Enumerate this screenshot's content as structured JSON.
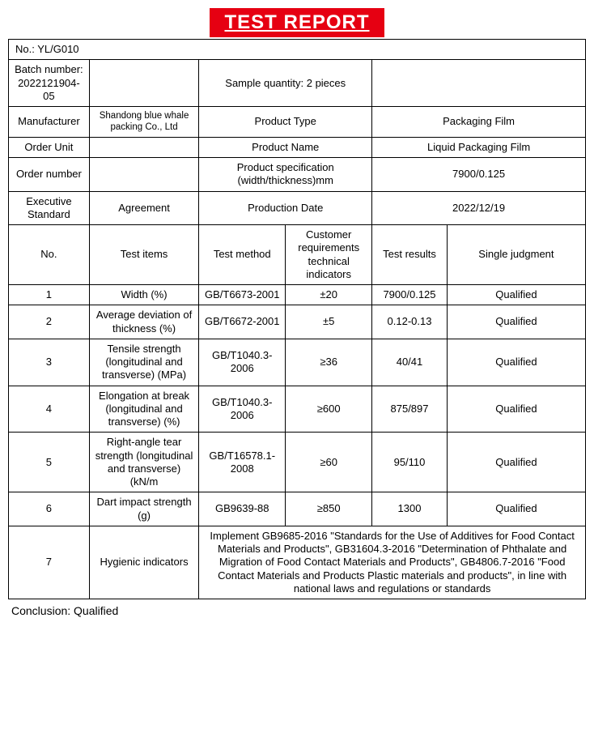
{
  "title": "TEST REPORT",
  "colors": {
    "banner_bg": "#e60012",
    "banner_text": "#ffffff",
    "border": "#000000",
    "page_bg": "#ffffff",
    "text": "#000000"
  },
  "header": {
    "no_label": "No.: YL/G010",
    "batch_label": "Batch number: 2022121904-05",
    "sample_qty": "Sample quantity: 2 pieces",
    "manufacturer_label": "Manufacturer",
    "manufacturer_value": "Shandong blue whale packing Co., Ltd",
    "product_type_label": "Product Type",
    "product_type_value": "Packaging Film",
    "order_unit_label": "Order Unit",
    "product_name_label": "Product Name",
    "product_name_value": "Liquid Packaging Film",
    "order_number_label": "Order number",
    "spec_label": "Product specification (width/thickness)mm",
    "spec_value": "7900/0.125",
    "exec_std_label": "Executive Standard",
    "exec_std_value": "Agreement",
    "prod_date_label": "Production Date",
    "prod_date_value": "2022/12/19"
  },
  "columns": {
    "no": "No.",
    "test_items": "Test items",
    "test_method": "Test method",
    "req": "Customer requirements technical indicators",
    "results": "Test results",
    "judgment": "Single judgment"
  },
  "rows": [
    {
      "no": "1",
      "item": "Width (%)",
      "method": "GB/T6673-2001",
      "req": "±20",
      "result": "7900/0.125",
      "judgment": "Qualified"
    },
    {
      "no": "2",
      "item": "Average deviation of thickness (%)",
      "method": "GB/T6672-2001",
      "req": "±5",
      "result": "0.12-0.13",
      "judgment": "Qualified"
    },
    {
      "no": "3",
      "item": "Tensile strength (longitudinal and transverse) (MPa)",
      "method": "GB/T1040.3-2006",
      "req": "≥36",
      "result": "40/41",
      "judgment": "Qualified"
    },
    {
      "no": "4",
      "item": "Elongation at break (longitudinal and transverse) (%)",
      "method": "GB/T1040.3-2006",
      "req": "≥600",
      "result": "875/897",
      "judgment": "Qualified"
    },
    {
      "no": "5",
      "item": "Right-angle tear strength (longitudinal and transverse) (kN/m",
      "method": "GB/T16578.1-2008",
      "req": "≥60",
      "result": "95/110",
      "judgment": "Qualified"
    },
    {
      "no": "6",
      "item": "Dart impact strength (g)",
      "method": "GB9639-88",
      "req": "≥850",
      "result": "1300",
      "judgment": "Qualified"
    }
  ],
  "hygienic": {
    "no": "7",
    "item": "Hygienic indicators",
    "text": "Implement GB9685-2016 \"Standards for the Use of Additives for Food Contact Materials and Products\", GB31604.3-2016 \"Determination of Phthalate and Migration of Food Contact Materials and Products\", GB4806.7-2016 \"Food Contact Materials and Products Plastic materials and products\", in line with national laws and regulations or standards"
  },
  "conclusion": "Conclusion: Qualified"
}
